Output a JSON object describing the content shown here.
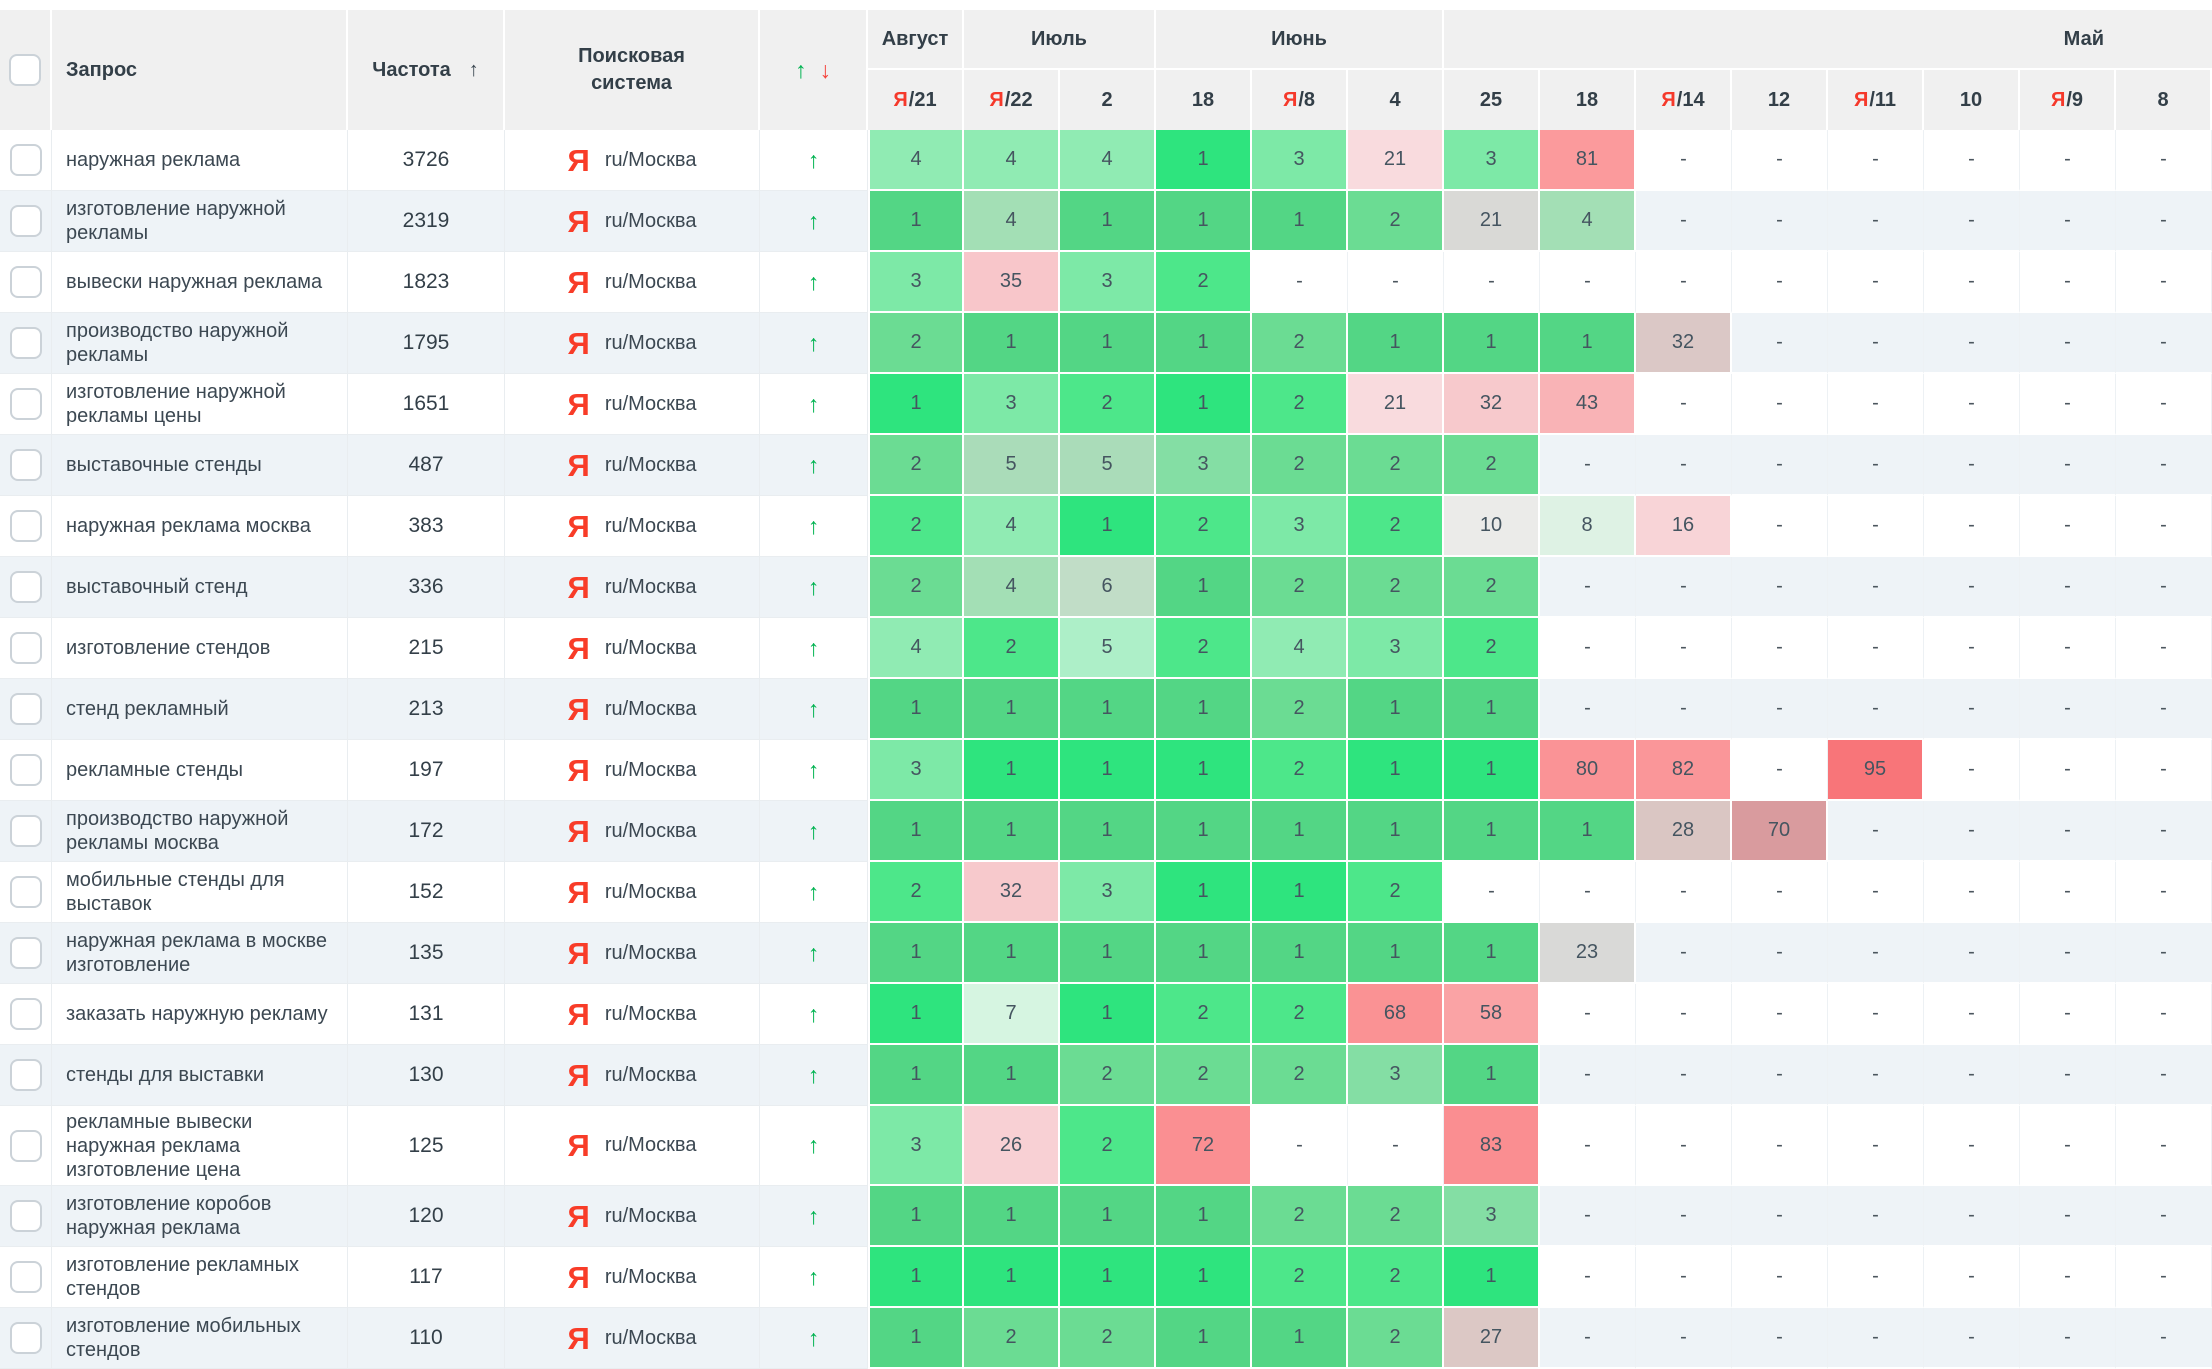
{
  "header": {
    "query": "Запрос",
    "frequency": "Частота",
    "sort_icon": "↑",
    "search_engine": "Поисковая система",
    "up_icon": "↑",
    "down_icon": "↓",
    "month_groups": [
      {
        "label": "Август",
        "cols": 1
      },
      {
        "label": "Июль",
        "cols": 2
      },
      {
        "label": "Июнь",
        "cols": 3
      },
      {
        "label": "Май",
        "cols": 8,
        "align": "right"
      }
    ],
    "dates": [
      {
        "ya": true,
        "day": "21"
      },
      {
        "ya": true,
        "day": "22"
      },
      {
        "ya": false,
        "day": "2"
      },
      {
        "ya": false,
        "day": "18"
      },
      {
        "ya": true,
        "day": "8"
      },
      {
        "ya": false,
        "day": "4"
      },
      {
        "ya": false,
        "day": "25"
      },
      {
        "ya": false,
        "day": "18"
      },
      {
        "ya": true,
        "day": "14"
      },
      {
        "ya": false,
        "day": "12"
      },
      {
        "ya": true,
        "day": "11"
      },
      {
        "ya": false,
        "day": "10"
      },
      {
        "ya": true,
        "day": "9"
      },
      {
        "ya": false,
        "day": "8"
      }
    ]
  },
  "engine": {
    "icon": "Я",
    "label": "ru/Москва"
  },
  "row_arrow": "↑",
  "empty_cell": "-",
  "colors": {
    "accent_up": "#00b351",
    "accent_down": "#f4453d",
    "yandex_red": "#f83c28",
    "header_bg": "#f0f0f0",
    "stripe": "#eef3f7"
  },
  "palette": {
    "w1": "#2ee47e",
    "w2": "#4de78a",
    "w3": "#7de9a7",
    "w4": "#90ebb3",
    "w5": "#adefc8",
    "w7": "#d6f5e1",
    "w8": "#def2e4",
    "w10": "#ebebe9",
    "w16": "#f8d4d7",
    "w21": "#f9dbde",
    "w26": "#f8d0d4",
    "w32": "#f7c9cc",
    "w35": "#f8c6ca",
    "w43": "#f9b3b6",
    "w58": "#faa3a5",
    "w68": "#fa9294",
    "w72": "#fa8f92",
    "w80": "#fa9396",
    "w81": "#fb9a9c",
    "w82": "#fa9699",
    "w83": "#fa8e91",
    "w95": "#f87579",
    "e1": "#53d685",
    "e2": "#6bdc93",
    "e3": "#84dea4",
    "e4": "#a3dfb5",
    "e5": "#aadcb9",
    "e6": "#c1ddc7",
    "e21": "#d9d9d6",
    "e23": "#d9d9d7",
    "e27": "#dcc8c5",
    "e28": "#dac6c3",
    "e32": "#dbc8c6",
    "e70": "#d99b9e"
  },
  "rows": [
    {
      "query": "наружная реклама",
      "frequency": "3726",
      "cells": [
        [
          "4",
          "w4"
        ],
        [
          "4",
          "w4"
        ],
        [
          "4",
          "w4"
        ],
        [
          "1",
          "w1"
        ],
        [
          "3",
          "w3"
        ],
        [
          "21",
          "w21"
        ],
        [
          "3",
          "w3"
        ],
        [
          "81",
          "w81"
        ],
        [
          "-"
        ],
        [
          "-"
        ],
        [
          "-"
        ],
        [
          "-"
        ],
        [
          "-"
        ],
        [
          "-"
        ]
      ]
    },
    {
      "query": "изготовление наружной рекламы",
      "frequency": "2319",
      "cells": [
        [
          "1",
          "e1"
        ],
        [
          "4",
          "e4"
        ],
        [
          "1",
          "e1"
        ],
        [
          "1",
          "e1"
        ],
        [
          "1",
          "e1"
        ],
        [
          "2",
          "e2"
        ],
        [
          "21",
          "e21"
        ],
        [
          "4",
          "e4"
        ],
        [
          "-"
        ],
        [
          "-"
        ],
        [
          "-"
        ],
        [
          "-"
        ],
        [
          "-"
        ],
        [
          "-"
        ]
      ]
    },
    {
      "query": "вывески наружная реклама",
      "frequency": "1823",
      "cells": [
        [
          "3",
          "w3"
        ],
        [
          "35",
          "w35"
        ],
        [
          "3",
          "w3"
        ],
        [
          "2",
          "w2"
        ],
        [
          "-"
        ],
        [
          "-"
        ],
        [
          "-"
        ],
        [
          "-"
        ],
        [
          "-"
        ],
        [
          "-"
        ],
        [
          "-"
        ],
        [
          "-"
        ],
        [
          "-"
        ],
        [
          "-"
        ]
      ]
    },
    {
      "query": "производство наружной рекламы",
      "frequency": "1795",
      "cells": [
        [
          "2",
          "e2"
        ],
        [
          "1",
          "e1"
        ],
        [
          "1",
          "e1"
        ],
        [
          "1",
          "e1"
        ],
        [
          "2",
          "e2"
        ],
        [
          "1",
          "e1"
        ],
        [
          "1",
          "e1"
        ],
        [
          "1",
          "e1"
        ],
        [
          "32",
          "e32"
        ],
        [
          "-"
        ],
        [
          "-"
        ],
        [
          "-"
        ],
        [
          "-"
        ],
        [
          "-"
        ]
      ]
    },
    {
      "query": "изготовление наружной рекламы цены",
      "frequency": "1651",
      "cells": [
        [
          "1",
          "w1"
        ],
        [
          "3",
          "w3"
        ],
        [
          "2",
          "w2"
        ],
        [
          "1",
          "w1"
        ],
        [
          "2",
          "w2"
        ],
        [
          "21",
          "w21"
        ],
        [
          "32",
          "w32"
        ],
        [
          "43",
          "w43"
        ],
        [
          "-"
        ],
        [
          "-"
        ],
        [
          "-"
        ],
        [
          "-"
        ],
        [
          "-"
        ],
        [
          "-"
        ]
      ]
    },
    {
      "query": "выставочные стенды",
      "frequency": "487",
      "cells": [
        [
          "2",
          "e2"
        ],
        [
          "5",
          "e5"
        ],
        [
          "5",
          "e5"
        ],
        [
          "3",
          "e3"
        ],
        [
          "2",
          "e2"
        ],
        [
          "2",
          "e2"
        ],
        [
          "2",
          "e2"
        ],
        [
          "-"
        ],
        [
          "-"
        ],
        [
          "-"
        ],
        [
          "-"
        ],
        [
          "-"
        ],
        [
          "-"
        ],
        [
          "-"
        ]
      ]
    },
    {
      "query": "наружная реклама москва",
      "frequency": "383",
      "cells": [
        [
          "2",
          "w2"
        ],
        [
          "4",
          "w4"
        ],
        [
          "1",
          "w1"
        ],
        [
          "2",
          "w2"
        ],
        [
          "3",
          "w3"
        ],
        [
          "2",
          "w2"
        ],
        [
          "10",
          "w10"
        ],
        [
          "8",
          "w8"
        ],
        [
          "16",
          "w16"
        ],
        [
          "-"
        ],
        [
          "-"
        ],
        [
          "-"
        ],
        [
          "-"
        ],
        [
          "-"
        ]
      ]
    },
    {
      "query": "выставочный стенд",
      "frequency": "336",
      "cells": [
        [
          "2",
          "e2"
        ],
        [
          "4",
          "e4"
        ],
        [
          "6",
          "e6"
        ],
        [
          "1",
          "e1"
        ],
        [
          "2",
          "e2"
        ],
        [
          "2",
          "e2"
        ],
        [
          "2",
          "e2"
        ],
        [
          "-"
        ],
        [
          "-"
        ],
        [
          "-"
        ],
        [
          "-"
        ],
        [
          "-"
        ],
        [
          "-"
        ],
        [
          "-"
        ]
      ]
    },
    {
      "query": "изготовление стендов",
      "frequency": "215",
      "cells": [
        [
          "4",
          "w4"
        ],
        [
          "2",
          "w2"
        ],
        [
          "5",
          "w5"
        ],
        [
          "2",
          "w2"
        ],
        [
          "4",
          "w4"
        ],
        [
          "3",
          "w3"
        ],
        [
          "2",
          "w2"
        ],
        [
          "-"
        ],
        [
          "-"
        ],
        [
          "-"
        ],
        [
          "-"
        ],
        [
          "-"
        ],
        [
          "-"
        ],
        [
          "-"
        ]
      ]
    },
    {
      "query": "стенд рекламный",
      "frequency": "213",
      "cells": [
        [
          "1",
          "e1"
        ],
        [
          "1",
          "e1"
        ],
        [
          "1",
          "e1"
        ],
        [
          "1",
          "e1"
        ],
        [
          "2",
          "e2"
        ],
        [
          "1",
          "e1"
        ],
        [
          "1",
          "e1"
        ],
        [
          "-"
        ],
        [
          "-"
        ],
        [
          "-"
        ],
        [
          "-"
        ],
        [
          "-"
        ],
        [
          "-"
        ],
        [
          "-"
        ]
      ]
    },
    {
      "query": "рекламные стенды",
      "frequency": "197",
      "cells": [
        [
          "3",
          "w3"
        ],
        [
          "1",
          "w1"
        ],
        [
          "1",
          "w1"
        ],
        [
          "1",
          "w1"
        ],
        [
          "2",
          "w2"
        ],
        [
          "1",
          "w1"
        ],
        [
          "1",
          "w1"
        ],
        [
          "80",
          "w80"
        ],
        [
          "82",
          "w82"
        ],
        [
          "-"
        ],
        [
          "95",
          "w95"
        ],
        [
          "-"
        ],
        [
          "-"
        ],
        [
          "-"
        ]
      ]
    },
    {
      "query": "производство наружной рекламы москва",
      "frequency": "172",
      "cells": [
        [
          "1",
          "e1"
        ],
        [
          "1",
          "e1"
        ],
        [
          "1",
          "e1"
        ],
        [
          "1",
          "e1"
        ],
        [
          "1",
          "e1"
        ],
        [
          "1",
          "e1"
        ],
        [
          "1",
          "e1"
        ],
        [
          "1",
          "e1"
        ],
        [
          "28",
          "e28"
        ],
        [
          "70",
          "e70"
        ],
        [
          "-"
        ],
        [
          "-"
        ],
        [
          "-"
        ],
        [
          "-"
        ]
      ]
    },
    {
      "query": "мобильные стенды для выставок",
      "frequency": "152",
      "cells": [
        [
          "2",
          "w2"
        ],
        [
          "32",
          "w32"
        ],
        [
          "3",
          "w3"
        ],
        [
          "1",
          "w1"
        ],
        [
          "1",
          "w1"
        ],
        [
          "2",
          "w2"
        ],
        [
          "-"
        ],
        [
          "-"
        ],
        [
          "-"
        ],
        [
          "-"
        ],
        [
          "-"
        ],
        [
          "-"
        ],
        [
          "-"
        ],
        [
          "-"
        ]
      ]
    },
    {
      "query": "наружная реклама в москве изготовление",
      "frequency": "135",
      "cells": [
        [
          "1",
          "e1"
        ],
        [
          "1",
          "e1"
        ],
        [
          "1",
          "e1"
        ],
        [
          "1",
          "e1"
        ],
        [
          "1",
          "e1"
        ],
        [
          "1",
          "e1"
        ],
        [
          "1",
          "e1"
        ],
        [
          "23",
          "e23"
        ],
        [
          "-"
        ],
        [
          "-"
        ],
        [
          "-"
        ],
        [
          "-"
        ],
        [
          "-"
        ],
        [
          "-"
        ]
      ]
    },
    {
      "query": "заказать наружную рекламу",
      "frequency": "131",
      "cells": [
        [
          "1",
          "w1"
        ],
        [
          "7",
          "w7"
        ],
        [
          "1",
          "w1"
        ],
        [
          "2",
          "w2"
        ],
        [
          "2",
          "w2"
        ],
        [
          "68",
          "w68"
        ],
        [
          "58",
          "w58"
        ],
        [
          "-"
        ],
        [
          "-"
        ],
        [
          "-"
        ],
        [
          "-"
        ],
        [
          "-"
        ],
        [
          "-"
        ],
        [
          "-"
        ]
      ]
    },
    {
      "query": "стенды для выставки",
      "frequency": "130",
      "cells": [
        [
          "1",
          "e1"
        ],
        [
          "1",
          "e1"
        ],
        [
          "2",
          "e2"
        ],
        [
          "2",
          "e2"
        ],
        [
          "2",
          "e2"
        ],
        [
          "3",
          "e3"
        ],
        [
          "1",
          "e1"
        ],
        [
          "-"
        ],
        [
          "-"
        ],
        [
          "-"
        ],
        [
          "-"
        ],
        [
          "-"
        ],
        [
          "-"
        ],
        [
          "-"
        ]
      ]
    },
    {
      "query": "рекламные вывески наружная реклама изготовление цена",
      "frequency": "125",
      "h": 80,
      "cells": [
        [
          "3",
          "w3"
        ],
        [
          "26",
          "w26"
        ],
        [
          "2",
          "w2"
        ],
        [
          "72",
          "w72"
        ],
        [
          "-"
        ],
        [
          "-"
        ],
        [
          "83",
          "w83"
        ],
        [
          "-"
        ],
        [
          "-"
        ],
        [
          "-"
        ],
        [
          "-"
        ],
        [
          "-"
        ],
        [
          "-"
        ],
        [
          "-"
        ]
      ]
    },
    {
      "query": "изготовление коробов наружная реклама",
      "frequency": "120",
      "cells": [
        [
          "1",
          "e1"
        ],
        [
          "1",
          "e1"
        ],
        [
          "1",
          "e1"
        ],
        [
          "1",
          "e1"
        ],
        [
          "2",
          "e2"
        ],
        [
          "2",
          "e2"
        ],
        [
          "3",
          "e3"
        ],
        [
          "-"
        ],
        [
          "-"
        ],
        [
          "-"
        ],
        [
          "-"
        ],
        [
          "-"
        ],
        [
          "-"
        ],
        [
          "-"
        ]
      ]
    },
    {
      "query": "изготовление рекламных стендов",
      "frequency": "117",
      "cells": [
        [
          "1",
          "w1"
        ],
        [
          "1",
          "w1"
        ],
        [
          "1",
          "w1"
        ],
        [
          "1",
          "w1"
        ],
        [
          "2",
          "w2"
        ],
        [
          "2",
          "w2"
        ],
        [
          "1",
          "w1"
        ],
        [
          "-"
        ],
        [
          "-"
        ],
        [
          "-"
        ],
        [
          "-"
        ],
        [
          "-"
        ],
        [
          "-"
        ],
        [
          "-"
        ]
      ]
    },
    {
      "query": "изготовление мобильных стендов",
      "frequency": "110",
      "cells": [
        [
          "1",
          "e1"
        ],
        [
          "2",
          "e2"
        ],
        [
          "2",
          "e2"
        ],
        [
          "1",
          "e1"
        ],
        [
          "1",
          "e1"
        ],
        [
          "2",
          "e2"
        ],
        [
          "27",
          "e27"
        ],
        [
          "-"
        ],
        [
          "-"
        ],
        [
          "-"
        ],
        [
          "-"
        ],
        [
          "-"
        ],
        [
          "-"
        ],
        [
          "-"
        ]
      ]
    }
  ]
}
